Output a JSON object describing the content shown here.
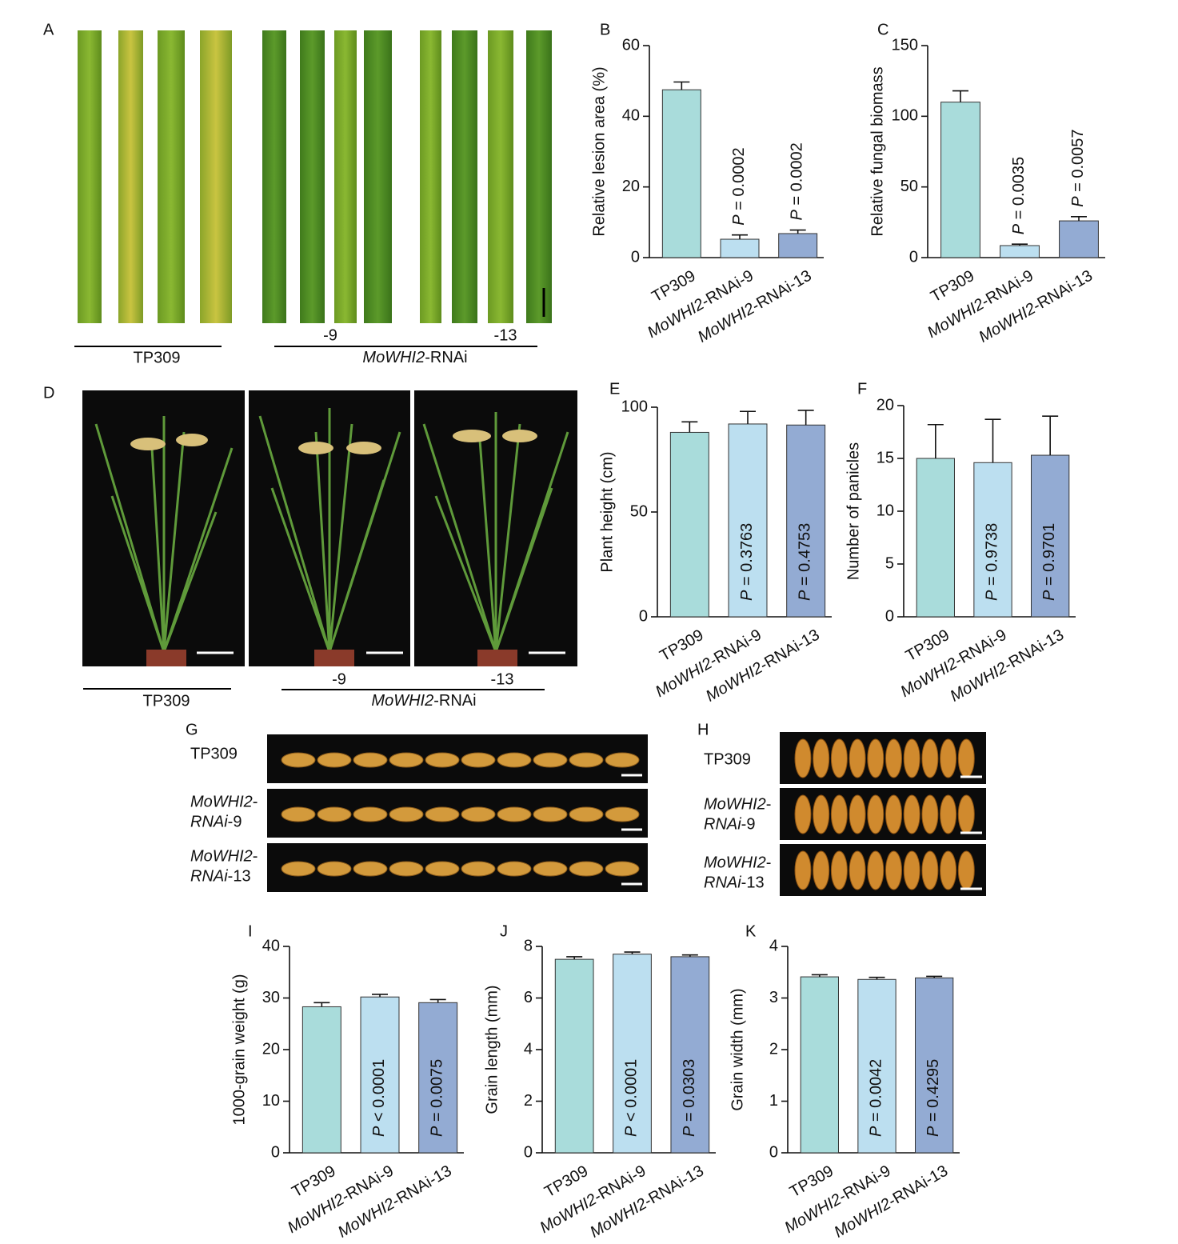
{
  "chart_data": [
    {
      "type": "bar",
      "label": "B",
      "ylabel": "Relative lesion area (%)",
      "categories": [
        "TP309",
        "MoWHI2-RNAi-9",
        "MoWHI2-RNAi-13"
      ],
      "values": [
        47.5,
        5.2,
        6.8
      ],
      "errors": [
        2.2,
        1.2,
        1.0
      ],
      "colors": [
        "#a9dcdb",
        "#bcdff0",
        "#93abd3"
      ],
      "ylim": [
        0,
        60
      ],
      "yticks": [
        0,
        20,
        40,
        60
      ],
      "p_values": [
        null,
        "P = 0.0002",
        "P = 0.0002"
      ]
    },
    {
      "type": "bar",
      "label": "C",
      "ylabel": "Relative fungal biomass",
      "categories": [
        "TP309",
        "MoWHI2-RNAi-9",
        "MoWHI2-RNAi-13"
      ],
      "values": [
        110,
        8.5,
        26
      ],
      "errors": [
        8,
        1,
        3
      ],
      "colors": [
        "#a9dcdb",
        "#bcdff0",
        "#93abd3"
      ],
      "ylim": [
        0,
        150
      ],
      "yticks": [
        0,
        50,
        100,
        150
      ],
      "p_values": [
        null,
        "P = 0.0035",
        "P = 0.0057"
      ]
    },
    {
      "type": "bar",
      "label": "E",
      "ylabel": "Plant height (cm)",
      "categories": [
        "TP309",
        "MoWHI2-RNAi-9",
        "MoWHI2-RNAi-13"
      ],
      "values": [
        88,
        92,
        91.5
      ],
      "errors": [
        5,
        6,
        7
      ],
      "colors": [
        "#a9dcdb",
        "#bcdff0",
        "#93abd3"
      ],
      "ylim": [
        0,
        100
      ],
      "yticks": [
        0,
        50,
        100
      ],
      "p_values": [
        null,
        "P = 0.3763",
        "P = 0.4753"
      ]
    },
    {
      "type": "bar",
      "label": "F",
      "ylabel": "Number of panicles",
      "categories": [
        "TP309",
        "MoWHI2-RNAi-9",
        "MoWHI2-RNAi-13"
      ],
      "values": [
        15,
        14.6,
        15.3
      ],
      "errors": [
        3.2,
        4.1,
        3.7
      ],
      "colors": [
        "#a9dcdb",
        "#bcdff0",
        "#93abd3"
      ],
      "ylim": [
        0,
        20
      ],
      "yticks": [
        0,
        5,
        10,
        15,
        20
      ],
      "p_values": [
        null,
        "P = 0.9738",
        "P = 0.9701"
      ]
    },
    {
      "type": "bar",
      "label": "I",
      "ylabel": "1000-grain weight (g)",
      "categories": [
        "TP309",
        "MoWHI2-RNAi-9",
        "MoWHI2-RNAi-13"
      ],
      "values": [
        28.3,
        30.2,
        29.1
      ],
      "errors": [
        0.8,
        0.5,
        0.6
      ],
      "colors": [
        "#a9dcdb",
        "#bcdff0",
        "#93abd3"
      ],
      "ylim": [
        0,
        40
      ],
      "yticks": [
        0,
        10,
        20,
        30,
        40
      ],
      "p_values": [
        null,
        "P < 0.0001",
        "P = 0.0075"
      ]
    },
    {
      "type": "bar",
      "label": "J",
      "ylabel": "Grain length (mm)",
      "categories": [
        "TP309",
        "MoWHI2-RNAi-9",
        "MoWHI2-RNAi-13"
      ],
      "values": [
        7.5,
        7.7,
        7.6
      ],
      "errors": [
        0.1,
        0.08,
        0.07
      ],
      "colors": [
        "#a9dcdb",
        "#bcdff0",
        "#93abd3"
      ],
      "ylim": [
        0,
        8
      ],
      "yticks": [
        0,
        2,
        4,
        6,
        8
      ],
      "p_values": [
        null,
        "P < 0.0001",
        "P = 0.0303"
      ]
    },
    {
      "type": "bar",
      "label": "K",
      "ylabel": "Grain width (mm)",
      "categories": [
        "TP309",
        "MoWHI2-RNAi-9",
        "MoWHI2-RNAi-13"
      ],
      "values": [
        3.41,
        3.36,
        3.39
      ],
      "errors": [
        0.04,
        0.04,
        0.03
      ],
      "colors": [
        "#a9dcdb",
        "#bcdff0",
        "#93abd3"
      ],
      "ylim": [
        0,
        4
      ],
      "yticks": [
        0,
        1,
        2,
        3,
        4
      ],
      "p_values": [
        null,
        "P = 0.0042",
        "P = 0.4295"
      ]
    }
  ],
  "photos": {
    "leaves": {
      "label": "A",
      "lines": [
        "-9",
        "-13"
      ],
      "groups": [
        "TP309",
        "MoWHI2-RNAi"
      ]
    },
    "plants": {
      "label": "D",
      "lines": [
        "-9",
        "-13"
      ],
      "groups": [
        "TP309",
        "MoWHI2-RNAi"
      ]
    },
    "grain_length": {
      "label": "G",
      "rows": [
        [
          "TP309"
        ],
        [
          "MoWHI2-",
          "RNAi-9"
        ],
        [
          "MoWHI2-",
          "RNAi-13"
        ]
      ]
    },
    "grain_width": {
      "label": "H",
      "rows": [
        [
          "TP309"
        ],
        [
          "MoWHI2-",
          "RNAi-9"
        ],
        [
          "MoWHI2-",
          "RNAi-13"
        ]
      ]
    }
  }
}
